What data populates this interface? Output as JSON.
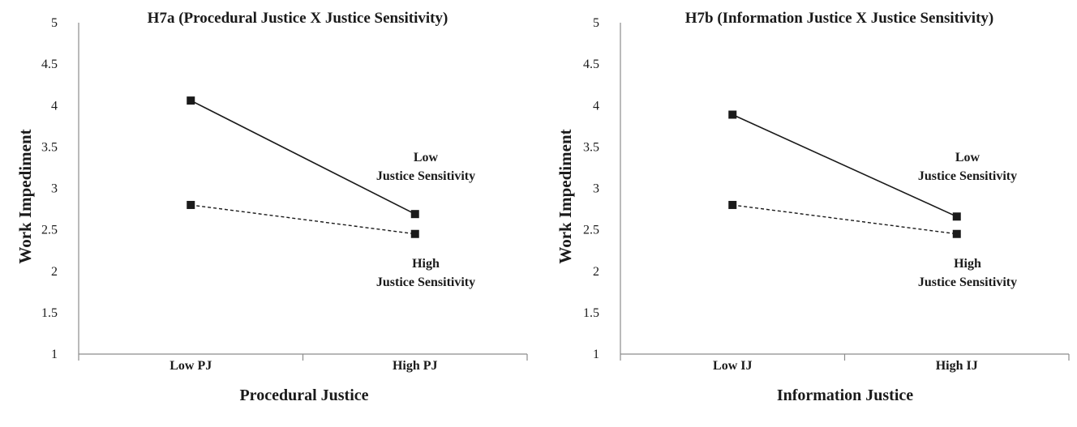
{
  "chart_data": [
    {
      "type": "line",
      "title": "H7a (Procedural Justice X Justice Sensitivity)",
      "xlabel": "Procedural Justice",
      "ylabel": "Work Impediment",
      "categories": [
        "Low PJ",
        "High PJ"
      ],
      "ylim": [
        1,
        5
      ],
      "yticks": [
        "1",
        "1.5",
        "2",
        "2.5",
        "3",
        "3.5",
        "4",
        "4.5",
        "5"
      ],
      "grid": false,
      "series": [
        {
          "name": "Low Justice Sensitivity",
          "style": "solid",
          "values": [
            4.06,
            2.69
          ]
        },
        {
          "name": "High Justice Sensitivity",
          "style": "dashed",
          "values": [
            2.8,
            2.45
          ]
        }
      ],
      "annotations": [
        {
          "series": 0,
          "lines": [
            "Low",
            "Justice Sensitivity"
          ]
        },
        {
          "series": 1,
          "lines": [
            "High",
            "Justice Sensitivity"
          ]
        }
      ]
    },
    {
      "type": "line",
      "title": "H7b (Information Justice X Justice Sensitivity)",
      "xlabel": "Information Justice",
      "ylabel": "Work Impediment",
      "categories": [
        "Low IJ",
        "High IJ"
      ],
      "ylim": [
        1,
        5
      ],
      "yticks": [
        "1",
        "1.5",
        "2",
        "2.5",
        "3",
        "3.5",
        "4",
        "4.5",
        "5"
      ],
      "grid": false,
      "series": [
        {
          "name": "Low Justice Sensitivity",
          "style": "solid",
          "values": [
            3.89,
            2.66
          ]
        },
        {
          "name": "High Justice Sensitivity",
          "style": "dashed",
          "values": [
            2.8,
            2.45
          ]
        }
      ],
      "annotations": [
        {
          "series": 0,
          "lines": [
            "Low",
            "Justice Sensitivity"
          ]
        },
        {
          "series": 1,
          "lines": [
            "High",
            "Justice Sensitivity"
          ]
        }
      ]
    }
  ],
  "colors": {
    "line": "#1a1a1a",
    "axis": "#8c8c8c"
  }
}
